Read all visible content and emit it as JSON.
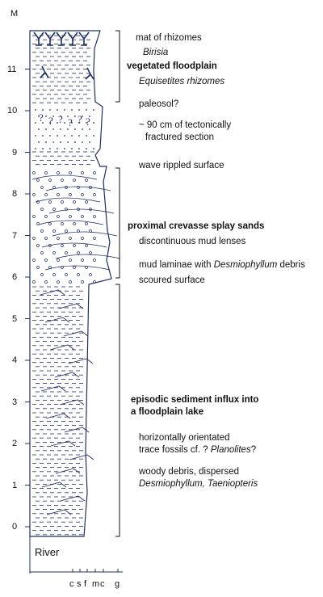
{
  "unit_label": "M",
  "scale_ticks": [
    "0",
    "1",
    "2",
    "3",
    "4",
    "5",
    "6",
    "7",
    "8",
    "9",
    "10",
    "11"
  ],
  "base_label": "River",
  "grain_size_labels": [
    "c",
    "s",
    "f",
    "m",
    "c",
    "g"
  ],
  "annotations": {
    "rhizome_mat": "mat of rhizomes",
    "birisia": "Birisia",
    "vegetated_floodplain": "vegetated floodplain",
    "equisetites": "Equisetites rhizomes",
    "paleosol": "paleosol?",
    "fractured_1": "~ 90 cm of tectonically",
    "fractured_2": "fractured section",
    "wave_rippled": "wave rippled surface",
    "crevasse_splay": "proximal crevasse splay sands",
    "mud_lenses": "discontinuous mud lenses",
    "mud_laminae_pre": "mud laminae with ",
    "mud_laminae_italic": "Desmiophyllum",
    "mud_laminae_post": " debris",
    "scoured": "scoured surface",
    "episodic_1": "episodic sediment influx into",
    "episodic_2": "a floodplain lake",
    "trace_1": "horizontally orientated",
    "trace_2_pre": "trace fossils cf. ? ",
    "trace_2_italic": "Planolites",
    "trace_2_post": "?",
    "woody_1": "woody debris, dispersed",
    "woody_2": "Desmiophyllum, Taeniopteris"
  },
  "colors": {
    "line": "#1f2f66",
    "text": "#111111"
  }
}
